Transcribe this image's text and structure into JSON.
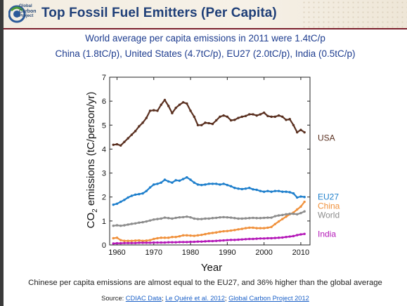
{
  "header": {
    "title": "Top Fossil Fuel Emitters (Per Capita)",
    "logo_text": [
      "Global",
      "Carbon",
      "Project"
    ]
  },
  "subtitle_line1": "World average per capita emissions in 2011 were 1.4tC/p",
  "subtitle_line2": "China (1.8tC/p), United States (4.7tC/p), EU27 (2.0tC/p), India (0.5tC/p)",
  "caption": "Chinese per capita emissions are almost equal to the EU27, and 36% higher than the global average",
  "source": {
    "prefix": "Source: ",
    "link1": "CDIAC Data",
    "sep1": "; ",
    "link2": "Le Quéré et al. 2012",
    "sep2": "; ",
    "link3": "Global Carbon Project 2012"
  },
  "colors": {
    "title": "#1f3f78",
    "subtitle": "#1d3c8f",
    "header_rule": "#7a1f2b"
  },
  "chart_data": {
    "type": "line",
    "xlabel": "Year",
    "ylabel_main": "CO",
    "ylabel_sub": "2",
    "ylabel_rest": " emissions (tC/person/yr)",
    "xlim": [
      1958,
      2012.5
    ],
    "ylim": [
      0,
      7
    ],
    "xticks": [
      1960,
      1970,
      1980,
      1990,
      2000,
      2010
    ],
    "yticks": [
      0,
      1,
      2,
      3,
      4,
      5,
      6,
      7
    ],
    "grid": false,
    "legend_placement": "right-end labels",
    "series": [
      {
        "name": "USA",
        "color": "#5a3020",
        "x": [
          1959,
          1960,
          1961,
          1962,
          1963,
          1964,
          1965,
          1966,
          1967,
          1968,
          1969,
          1970,
          1971,
          1972,
          1973,
          1974,
          1975,
          1976,
          1977,
          1978,
          1979,
          1980,
          1981,
          1982,
          1983,
          1984,
          1985,
          1986,
          1987,
          1988,
          1989,
          1990,
          1991,
          1992,
          1993,
          1994,
          1995,
          1996,
          1997,
          1998,
          1999,
          2000,
          2001,
          2002,
          2003,
          2004,
          2005,
          2006,
          2007,
          2008,
          2009,
          2010,
          2011
        ],
        "values": [
          4.18,
          4.2,
          4.15,
          4.3,
          4.45,
          4.6,
          4.75,
          4.95,
          5.1,
          5.3,
          5.6,
          5.62,
          5.6,
          5.85,
          6.05,
          5.8,
          5.5,
          5.72,
          5.85,
          5.95,
          5.9,
          5.6,
          5.35,
          5.0,
          5.0,
          5.1,
          5.08,
          5.05,
          5.2,
          5.35,
          5.4,
          5.35,
          5.2,
          5.22,
          5.3,
          5.35,
          5.38,
          5.45,
          5.45,
          5.4,
          5.45,
          5.52,
          5.38,
          5.35,
          5.35,
          5.4,
          5.35,
          5.22,
          5.25,
          5.0,
          4.7,
          4.8,
          4.7
        ]
      },
      {
        "name": "EU27",
        "color": "#1e7fcc",
        "x": [
          1959,
          1960,
          1961,
          1962,
          1963,
          1964,
          1965,
          1966,
          1967,
          1968,
          1969,
          1970,
          1971,
          1972,
          1973,
          1974,
          1975,
          1976,
          1977,
          1978,
          1979,
          1980,
          1981,
          1982,
          1983,
          1984,
          1985,
          1986,
          1987,
          1988,
          1989,
          1990,
          1991,
          1992,
          1993,
          1994,
          1995,
          1996,
          1997,
          1998,
          1999,
          2000,
          2001,
          2002,
          2003,
          2004,
          2005,
          2006,
          2007,
          2008,
          2009,
          2010,
          2011
        ],
        "values": [
          1.68,
          1.72,
          1.8,
          1.88,
          1.98,
          2.05,
          2.1,
          2.12,
          2.15,
          2.25,
          2.4,
          2.52,
          2.55,
          2.6,
          2.72,
          2.65,
          2.6,
          2.7,
          2.68,
          2.75,
          2.82,
          2.72,
          2.6,
          2.52,
          2.5,
          2.52,
          2.55,
          2.55,
          2.55,
          2.52,
          2.55,
          2.5,
          2.45,
          2.38,
          2.35,
          2.33,
          2.35,
          2.38,
          2.32,
          2.3,
          2.25,
          2.22,
          2.25,
          2.22,
          2.25,
          2.25,
          2.22,
          2.22,
          2.2,
          2.15,
          1.98,
          2.02,
          2.0
        ]
      },
      {
        "name": "China",
        "color": "#f0913c",
        "x": [
          1959,
          1960,
          1961,
          1962,
          1963,
          1964,
          1965,
          1966,
          1967,
          1968,
          1969,
          1970,
          1971,
          1972,
          1973,
          1974,
          1975,
          1976,
          1977,
          1978,
          1979,
          1980,
          1981,
          1982,
          1983,
          1984,
          1985,
          1986,
          1987,
          1988,
          1989,
          1990,
          1991,
          1992,
          1993,
          1994,
          1995,
          1996,
          1997,
          1998,
          1999,
          2000,
          2001,
          2002,
          2003,
          2004,
          2005,
          2006,
          2007,
          2008,
          2009,
          2010,
          2011
        ],
        "values": [
          0.28,
          0.3,
          0.2,
          0.17,
          0.17,
          0.17,
          0.18,
          0.19,
          0.17,
          0.18,
          0.2,
          0.25,
          0.28,
          0.3,
          0.3,
          0.3,
          0.33,
          0.33,
          0.36,
          0.4,
          0.4,
          0.39,
          0.38,
          0.4,
          0.42,
          0.45,
          0.48,
          0.5,
          0.52,
          0.55,
          0.57,
          0.58,
          0.6,
          0.62,
          0.65,
          0.67,
          0.7,
          0.72,
          0.72,
          0.7,
          0.7,
          0.7,
          0.72,
          0.75,
          0.87,
          0.98,
          1.08,
          1.18,
          1.28,
          1.35,
          1.48,
          1.6,
          1.8
        ]
      },
      {
        "name": "World",
        "color": "#8c8c8c",
        "x": [
          1959,
          1960,
          1961,
          1962,
          1963,
          1964,
          1965,
          1966,
          1967,
          1968,
          1969,
          1970,
          1971,
          1972,
          1973,
          1974,
          1975,
          1976,
          1977,
          1978,
          1979,
          1980,
          1981,
          1982,
          1983,
          1984,
          1985,
          1986,
          1987,
          1988,
          1989,
          1990,
          1991,
          1992,
          1993,
          1994,
          1995,
          1996,
          1997,
          1998,
          1999,
          2000,
          2001,
          2002,
          2003,
          2004,
          2005,
          2006,
          2007,
          2008,
          2009,
          2010,
          2011
        ],
        "values": [
          0.8,
          0.82,
          0.8,
          0.82,
          0.85,
          0.88,
          0.9,
          0.93,
          0.95,
          0.98,
          1.02,
          1.06,
          1.08,
          1.1,
          1.14,
          1.12,
          1.1,
          1.13,
          1.15,
          1.16,
          1.18,
          1.15,
          1.1,
          1.08,
          1.08,
          1.1,
          1.1,
          1.12,
          1.13,
          1.15,
          1.16,
          1.15,
          1.14,
          1.12,
          1.1,
          1.1,
          1.11,
          1.12,
          1.13,
          1.12,
          1.12,
          1.13,
          1.14,
          1.14,
          1.2,
          1.23,
          1.25,
          1.28,
          1.3,
          1.3,
          1.28,
          1.33,
          1.4
        ]
      },
      {
        "name": "India",
        "color": "#b418b8",
        "x": [
          1959,
          1960,
          1961,
          1962,
          1963,
          1964,
          1965,
          1966,
          1967,
          1968,
          1969,
          1970,
          1971,
          1972,
          1973,
          1974,
          1975,
          1976,
          1977,
          1978,
          1979,
          1980,
          1981,
          1982,
          1983,
          1984,
          1985,
          1986,
          1987,
          1988,
          1989,
          1990,
          1991,
          1992,
          1993,
          1994,
          1995,
          1996,
          1997,
          1998,
          1999,
          2000,
          2001,
          2002,
          2003,
          2004,
          2005,
          2006,
          2007,
          2008,
          2009,
          2010,
          2011
        ],
        "values": [
          0.06,
          0.07,
          0.07,
          0.08,
          0.08,
          0.08,
          0.08,
          0.09,
          0.09,
          0.09,
          0.09,
          0.1,
          0.1,
          0.1,
          0.1,
          0.11,
          0.11,
          0.11,
          0.12,
          0.12,
          0.12,
          0.13,
          0.13,
          0.14,
          0.14,
          0.15,
          0.16,
          0.16,
          0.17,
          0.18,
          0.19,
          0.2,
          0.21,
          0.21,
          0.22,
          0.23,
          0.24,
          0.25,
          0.25,
          0.26,
          0.27,
          0.27,
          0.28,
          0.28,
          0.29,
          0.3,
          0.31,
          0.33,
          0.35,
          0.37,
          0.41,
          0.44,
          0.46
        ]
      }
    ]
  }
}
